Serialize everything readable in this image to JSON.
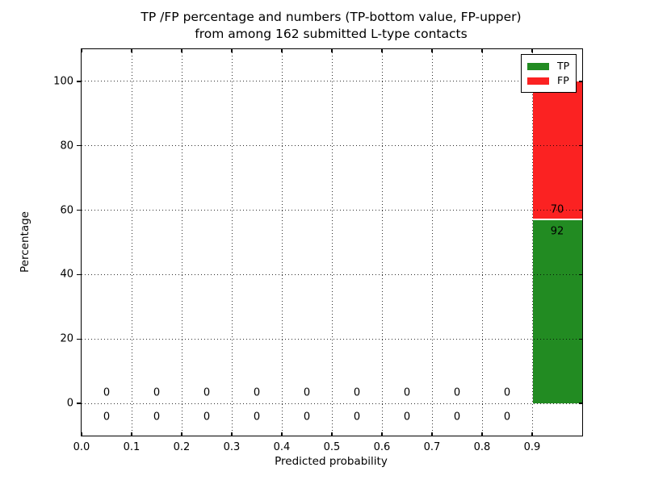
{
  "chart_data": {
    "type": "bar",
    "stacked": true,
    "title_line1": "TP /FP percentage and numbers (TP-bottom value, FP-upper)",
    "title_line2": "from among 162 submitted L-type contacts",
    "xlabel": "Predicted probability",
    "ylabel": "Percentage",
    "total_submitted": 162,
    "xlim": [
      0,
      1
    ],
    "ylim": [
      -10,
      110
    ],
    "grid": {
      "style": "dotted",
      "color": "#000000"
    },
    "yticks": [
      0,
      20,
      40,
      60,
      80,
      100
    ],
    "xticks": [
      {
        "v": 0.0,
        "label": "0.0"
      },
      {
        "v": 0.1,
        "label": "0.1"
      },
      {
        "v": 0.2,
        "label": "0.2"
      },
      {
        "v": 0.3,
        "label": "0.3"
      },
      {
        "v": 0.4,
        "label": "0.4"
      },
      {
        "v": 0.5,
        "label": "0.5"
      },
      {
        "v": 0.6,
        "label": "0.6"
      },
      {
        "v": 0.7,
        "label": "0.7"
      },
      {
        "v": 0.8,
        "label": "0.8"
      },
      {
        "v": 0.9,
        "label": "0.9"
      }
    ],
    "series": [
      {
        "name": "TP",
        "color": "#228b22"
      },
      {
        "name": "FP",
        "color": "#fb2222"
      }
    ],
    "bins": [
      {
        "x0": 0.0,
        "x1": 0.1,
        "tp": 0,
        "fp": 0
      },
      {
        "x0": 0.1,
        "x1": 0.2,
        "tp": 0,
        "fp": 0
      },
      {
        "x0": 0.2,
        "x1": 0.3,
        "tp": 0,
        "fp": 0
      },
      {
        "x0": 0.3,
        "x1": 0.4,
        "tp": 0,
        "fp": 0
      },
      {
        "x0": 0.4,
        "x1": 0.5,
        "tp": 0,
        "fp": 0
      },
      {
        "x0": 0.5,
        "x1": 0.6,
        "tp": 0,
        "fp": 0
      },
      {
        "x0": 0.6,
        "x1": 0.7,
        "tp": 0,
        "fp": 0
      },
      {
        "x0": 0.7,
        "x1": 0.8,
        "tp": 0,
        "fp": 0
      },
      {
        "x0": 0.8,
        "x1": 0.9,
        "tp": 0,
        "fp": 0
      },
      {
        "x0": 0.9,
        "x1": 1.0,
        "tp": 92,
        "fp": 70
      }
    ],
    "legend": {
      "position": "upper right"
    }
  }
}
